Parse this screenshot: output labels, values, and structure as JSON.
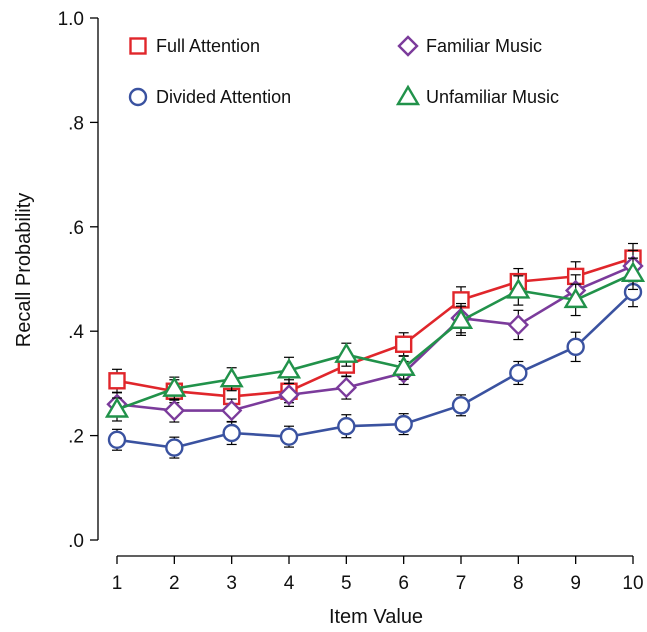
{
  "chart_data": {
    "type": "line",
    "xlabel": "Item Value",
    "ylabel": "Recall Probability",
    "x": [
      1,
      2,
      3,
      4,
      5,
      6,
      7,
      8,
      9,
      10
    ],
    "xlim": [
      0.7,
      10.3
    ],
    "ylim": [
      0,
      1.0
    ],
    "xticks": [
      1,
      2,
      3,
      4,
      5,
      6,
      7,
      8,
      9,
      10
    ],
    "xtick_labels": [
      "1",
      "2",
      "3",
      "4",
      "5",
      "6",
      "7",
      "8",
      "9",
      "10"
    ],
    "yticks": [
      0,
      0.2,
      0.4,
      0.6,
      0.8,
      1.0
    ],
    "ytick_labels": [
      ".0",
      ".2",
      ".4",
      ".6",
      ".8",
      "1.0"
    ],
    "grid": false,
    "legend_position": "top",
    "series": [
      {
        "name": "Full Attention",
        "marker": "square",
        "color": "#e0262b",
        "values": [
          0.305,
          0.285,
          0.275,
          0.285,
          0.335,
          0.375,
          0.46,
          0.495,
          0.505,
          0.54
        ],
        "errors": [
          0.022,
          0.022,
          0.022,
          0.022,
          0.022,
          0.022,
          0.025,
          0.025,
          0.028,
          0.028
        ]
      },
      {
        "name": "Divided Attention",
        "marker": "circle",
        "color": "#3a52a0",
        "values": [
          0.192,
          0.177,
          0.205,
          0.198,
          0.218,
          0.222,
          0.258,
          0.32,
          0.37,
          0.475
        ],
        "errors": [
          0.02,
          0.02,
          0.022,
          0.02,
          0.022,
          0.02,
          0.02,
          0.022,
          0.028,
          0.028
        ]
      },
      {
        "name": "Familiar Music",
        "marker": "diamond",
        "color": "#7b3b9b",
        "values": [
          0.26,
          0.248,
          0.248,
          0.278,
          0.292,
          0.32,
          0.425,
          0.412,
          0.478,
          0.525
        ],
        "errors": [
          0.022,
          0.022,
          0.022,
          0.022,
          0.022,
          0.022,
          0.028,
          0.028,
          0.03,
          0.03
        ]
      },
      {
        "name": "Unfamiliar Music",
        "marker": "triangle",
        "color": "#21924a",
        "values": [
          0.25,
          0.29,
          0.308,
          0.325,
          0.355,
          0.33,
          0.42,
          0.478,
          0.46,
          0.51
        ],
        "errors": [
          0.022,
          0.022,
          0.022,
          0.025,
          0.022,
          0.022,
          0.028,
          0.028,
          0.03,
          0.03
        ]
      }
    ]
  }
}
